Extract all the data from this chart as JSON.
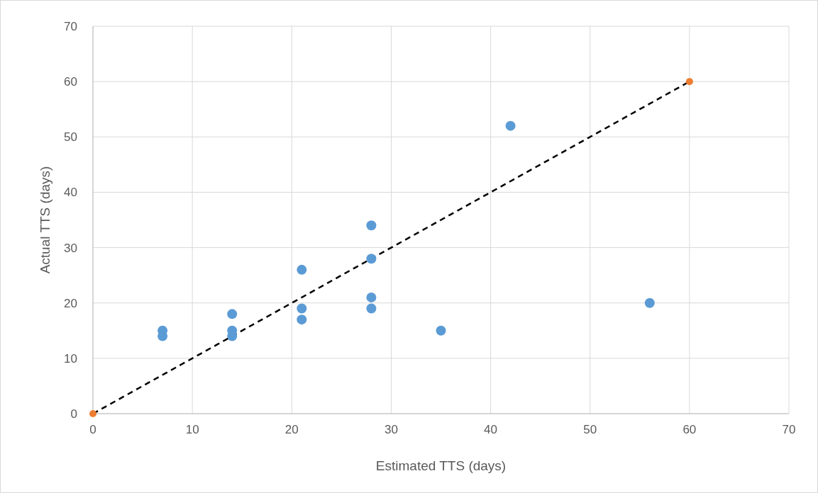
{
  "chart_data": {
    "type": "scatter",
    "xlabel": "Estimated TTS (days)",
    "ylabel": "Actual TTS (days)",
    "xlim": [
      0,
      70
    ],
    "ylim": [
      0,
      70
    ],
    "xticks": [
      0,
      10,
      20,
      30,
      40,
      50,
      60,
      70
    ],
    "yticks": [
      0,
      10,
      20,
      30,
      40,
      50,
      60,
      70
    ],
    "grid": true,
    "marker": "circle",
    "series": [
      {
        "type": "line",
        "color": "#000000",
        "line_style": "dashed",
        "marker": "none",
        "x": [
          0,
          60
        ],
        "values": [
          0,
          60
        ]
      },
      {
        "color": "#5b9bd5",
        "x": [
          7,
          7,
          14,
          14,
          14,
          21,
          21,
          21,
          28,
          28,
          28,
          28,
          35,
          42,
          56
        ],
        "values": [
          15,
          14,
          18,
          15,
          14,
          26,
          19,
          17,
          34,
          28,
          21,
          19,
          15,
          52,
          20
        ]
      },
      {
        "color": "#ed7d31",
        "x": [
          0,
          60
        ],
        "values": [
          0,
          60
        ]
      }
    ]
  }
}
